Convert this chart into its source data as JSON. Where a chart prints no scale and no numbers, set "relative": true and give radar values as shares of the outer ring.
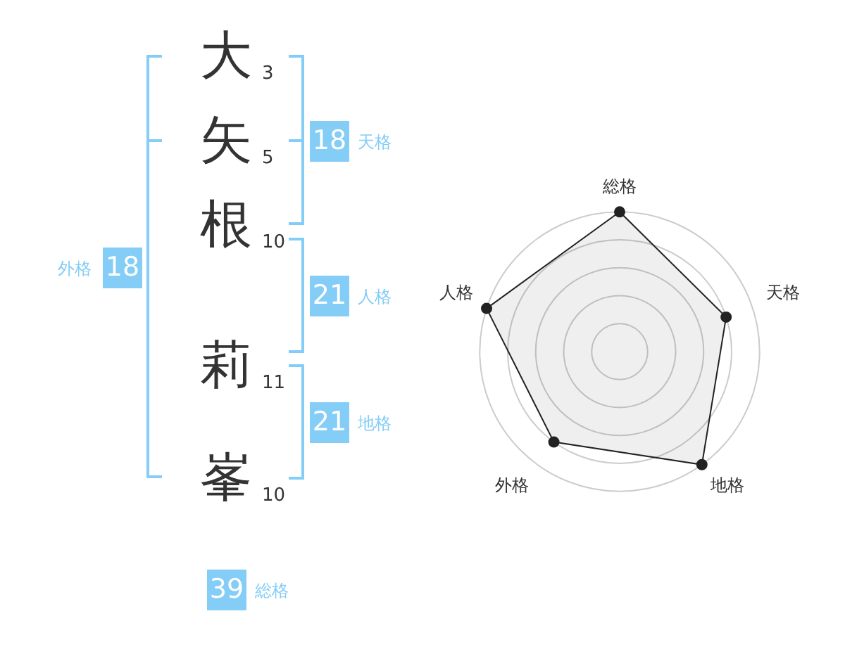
{
  "chart_data": [
    {
      "type": "other",
      "categories": [
        "大",
        "矢",
        "根",
        "莉",
        "峯"
      ],
      "values": [
        3,
        5,
        10,
        11,
        10
      ],
      "data_labels": true
    },
    {
      "type": "other",
      "categories": [
        "天格",
        "人格",
        "地格",
        "外格",
        "総格"
      ],
      "values": [
        18,
        21,
        21,
        18,
        39
      ],
      "color": "#84cdf6",
      "data_labels": true
    },
    {
      "type": "radar",
      "categories": [
        "総格",
        "天格",
        "地格",
        "外格",
        "人格"
      ],
      "values": [
        1,
        0.8,
        1,
        0.8,
        1
      ],
      "color": "#222222",
      "relative": true,
      "grid": true,
      "marker": "circle"
    }
  ]
}
